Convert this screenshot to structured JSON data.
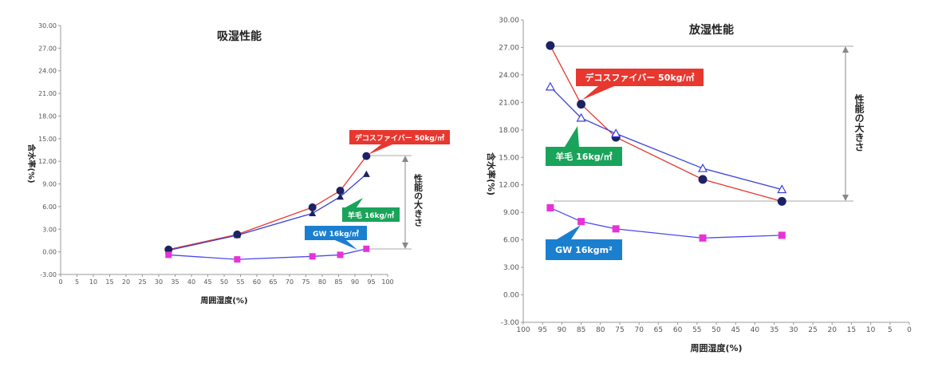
{
  "chart_data": [
    {
      "type": "line",
      "title": "吸湿性能",
      "xlabel": "周囲湿度(%)",
      "ylabel": "含水率(%)",
      "xlim": [
        0,
        100
      ],
      "ylim": [
        -3,
        30
      ],
      "x_ticks": [
        "0",
        "5",
        "10",
        "15",
        "20",
        "25",
        "30",
        "35",
        "40",
        "45",
        "50",
        "55",
        "60",
        "65",
        "70",
        "75",
        "80",
        "85",
        "90",
        "95",
        "100"
      ],
      "y_ticks": [
        "-3.00",
        "0.00",
        "3.00",
        "6.00",
        "9.00",
        "12.00",
        "15.00",
        "18.00",
        "21.00",
        "24.00",
        "27.00",
        "30.00"
      ],
      "series": [
        {
          "name": "デコスファイバー 50kg/㎡",
          "color": "#e8372f",
          "marker": "circle",
          "x": [
            33,
            54,
            77,
            85.5,
            93.5
          ],
          "y": [
            0.3,
            2.3,
            5.9,
            8.1,
            12.7
          ]
        },
        {
          "name": "羊毛 16kg/㎡",
          "color": "#3a3fd8",
          "marker": "triangle-filled",
          "x": [
            33,
            54,
            77,
            85.5,
            93.5
          ],
          "y": [
            0.2,
            2.2,
            5.1,
            7.3,
            10.3
          ]
        },
        {
          "name": "GW 16kg/㎡",
          "color": "#4a4af0",
          "marker": "square",
          "x": [
            33,
            54,
            77,
            85.5,
            93.5
          ],
          "y": [
            -0.4,
            -1.0,
            -0.6,
            -0.4,
            0.4
          ]
        }
      ],
      "annotation": "性能の大きさ"
    },
    {
      "type": "line",
      "title": "放湿性能",
      "xlabel": "周囲湿度(%)",
      "ylabel": "含水率(%)",
      "xlim": [
        100,
        0
      ],
      "ylim": [
        -3,
        30
      ],
      "x_ticks": [
        "100",
        "95",
        "90",
        "85",
        "80",
        "75",
        "70",
        "65",
        "60",
        "55",
        "50",
        "45",
        "40",
        "35",
        "30",
        "25",
        "20",
        "15",
        "10",
        "5",
        "0"
      ],
      "y_ticks": [
        "-3.00",
        "0.00",
        "3.00",
        "6.00",
        "9.00",
        "12.00",
        "15.00",
        "18.00",
        "21.00",
        "24.00",
        "27.00",
        "30.00"
      ],
      "series": [
        {
          "name": "デコスファイバー 50kg/㎡",
          "color": "#e8372f",
          "marker": "circle",
          "x": [
            93,
            85,
            76,
            53.5,
            33
          ],
          "y": [
            27.2,
            20.8,
            17.2,
            12.6,
            10.2
          ]
        },
        {
          "name": "羊毛 16kg/㎡",
          "color": "#3a3fd8",
          "marker": "triangle-open",
          "x": [
            93,
            85,
            76,
            53.5,
            33
          ],
          "y": [
            22.7,
            19.3,
            17.6,
            13.8,
            11.5
          ]
        },
        {
          "name": "GW 16kgm²",
          "color": "#4a4af0",
          "marker": "square",
          "x": [
            93,
            85,
            76,
            53.5,
            33
          ],
          "y": [
            9.5,
            8.0,
            7.2,
            6.2,
            6.5
          ]
        }
      ],
      "annotation": "性能の大きさ"
    }
  ]
}
